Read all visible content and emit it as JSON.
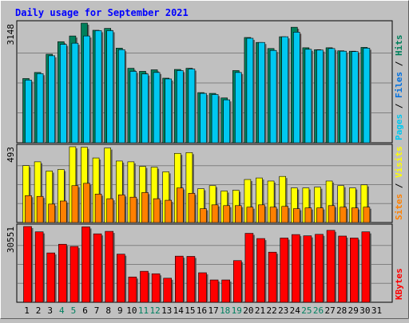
{
  "chart_data": [
    {
      "type": "bar",
      "title": "Daily usage for September 2021",
      "panel": "top",
      "ylim": [
        0,
        3148
      ],
      "y_tick_label": "3148",
      "right_labels": [
        "Pages",
        "Files",
        "Hits"
      ],
      "categories": [
        "1",
        "2",
        "3",
        "4",
        "5",
        "6",
        "7",
        "8",
        "9",
        "10",
        "11",
        "12",
        "13",
        "14",
        "15",
        "16",
        "17",
        "18",
        "19",
        "20",
        "21",
        "22",
        "23",
        "24",
        "25",
        "26",
        "27",
        "28",
        "29",
        "30",
        "31"
      ],
      "series": [
        {
          "name": "Hits",
          "color": "#00805c",
          "values": [
            1690,
            1850,
            2330,
            2660,
            2810,
            3148,
            2960,
            3010,
            2490,
            1960,
            1880,
            1920,
            1700,
            1930,
            1960,
            1320,
            1300,
            1180,
            1900,
            2770,
            2640,
            2480,
            2790,
            3040,
            2500,
            2450,
            2500,
            2420,
            2410,
            2510,
            0
          ]
        },
        {
          "name": "Files",
          "color": "#00c8f0",
          "values": [
            1650,
            1820,
            2290,
            2590,
            2620,
            2810,
            2950,
            2950,
            2450,
            1880,
            1810,
            1850,
            1680,
            1900,
            1940,
            1300,
            1270,
            1130,
            1850,
            2750,
            2640,
            2430,
            2790,
            2910,
            2460,
            2440,
            2480,
            2410,
            2400,
            2490,
            0
          ]
        },
        {
          "name": "Pages",
          "color": "#0070e0",
          "values": [
            0,
            0,
            0,
            0,
            0,
            0,
            0,
            0,
            0,
            0,
            0,
            0,
            0,
            0,
            0,
            0,
            0,
            0,
            0,
            0,
            0,
            0,
            0,
            0,
            0,
            0,
            0,
            0,
            0,
            0,
            0
          ]
        }
      ]
    },
    {
      "type": "bar",
      "panel": "middle",
      "ylim": [
        0,
        493
      ],
      "y_tick_label": "493",
      "right_labels": [
        "Sites",
        "Visits"
      ],
      "categories": [
        "1",
        "2",
        "3",
        "4",
        "5",
        "6",
        "7",
        "8",
        "9",
        "10",
        "11",
        "12",
        "13",
        "14",
        "15",
        "16",
        "17",
        "18",
        "19",
        "20",
        "21",
        "22",
        "23",
        "24",
        "25",
        "26",
        "27",
        "28",
        "29",
        "30",
        "31"
      ],
      "series": [
        {
          "name": "Visits",
          "color": "#ffff00",
          "values": [
            370,
            395,
            335,
            345,
            493,
            490,
            420,
            485,
            400,
            395,
            365,
            360,
            330,
            450,
            455,
            220,
            240,
            205,
            210,
            280,
            290,
            270,
            300,
            225,
            225,
            230,
            270,
            240,
            225,
            245,
            0
          ]
        },
        {
          "name": "Sites",
          "color": "#ff8000",
          "values": [
            175,
            170,
            120,
            140,
            240,
            255,
            185,
            155,
            180,
            165,
            195,
            155,
            145,
            225,
            190,
            90,
            115,
            110,
            110,
            100,
            115,
            100,
            105,
            90,
            95,
            95,
            110,
            100,
            95,
            100,
            0
          ]
        }
      ]
    },
    {
      "type": "bar",
      "panel": "bottom",
      "ylim": [
        0,
        30551
      ],
      "y_tick_label": "30551",
      "right_labels": [
        "KBytes"
      ],
      "categories": [
        "1",
        "2",
        "3",
        "4",
        "5",
        "6",
        "7",
        "8",
        "9",
        "10",
        "11",
        "12",
        "13",
        "14",
        "15",
        "16",
        "17",
        "18",
        "19",
        "20",
        "21",
        "22",
        "23",
        "24",
        "25",
        "26",
        "27",
        "28",
        "29",
        "30",
        "31"
      ],
      "series": [
        {
          "name": "KBytes",
          "color": "#ff0000",
          "values": [
            30551,
            28400,
            19900,
            23400,
            22500,
            30400,
            27600,
            28600,
            19400,
            10200,
            12500,
            11500,
            9700,
            18600,
            18500,
            11900,
            9000,
            9000,
            16800,
            27800,
            25700,
            20200,
            25900,
            27300,
            26800,
            27400,
            29000,
            26700,
            25900,
            28400,
            0
          ]
        }
      ]
    }
  ],
  "x_labels": [
    {
      "text": "1",
      "color": "#000000"
    },
    {
      "text": "2",
      "color": "#000000"
    },
    {
      "text": "3",
      "color": "#000000"
    },
    {
      "text": "4",
      "color": "#008060"
    },
    {
      "text": "5",
      "color": "#008060"
    },
    {
      "text": "6",
      "color": "#000000"
    },
    {
      "text": "7",
      "color": "#000000"
    },
    {
      "text": "8",
      "color": "#000000"
    },
    {
      "text": "9",
      "color": "#000000"
    },
    {
      "text": "10",
      "color": "#000000"
    },
    {
      "text": "11",
      "color": "#008060"
    },
    {
      "text": "12",
      "color": "#008060"
    },
    {
      "text": "13",
      "color": "#000000"
    },
    {
      "text": "14",
      "color": "#000000"
    },
    {
      "text": "15",
      "color": "#000000"
    },
    {
      "text": "16",
      "color": "#000000"
    },
    {
      "text": "17",
      "color": "#000000"
    },
    {
      "text": "18",
      "color": "#008060"
    },
    {
      "text": "19",
      "color": "#008060"
    },
    {
      "text": "20",
      "color": "#000000"
    },
    {
      "text": "21",
      "color": "#000000"
    },
    {
      "text": "22",
      "color": "#000000"
    },
    {
      "text": "23",
      "color": "#000000"
    },
    {
      "text": "24",
      "color": "#000000"
    },
    {
      "text": "25",
      "color": "#008060"
    },
    {
      "text": "26",
      "color": "#008060"
    },
    {
      "text": "27",
      "color": "#000000"
    },
    {
      "text": "28",
      "color": "#000000"
    },
    {
      "text": "29",
      "color": "#000000"
    },
    {
      "text": "30",
      "color": "#000000"
    },
    {
      "text": "31",
      "color": "#000000"
    }
  ],
  "colors": {
    "background": "#c0c0c0",
    "plot_background": "#c0c0c0",
    "title": "#0000ff",
    "grid": "#808080",
    "hits": "#00805c",
    "files": "#00c8f0",
    "pages": "#0070e0",
    "visits": "#ffff00",
    "sites": "#ff8000",
    "kbytes": "#ff0000"
  }
}
